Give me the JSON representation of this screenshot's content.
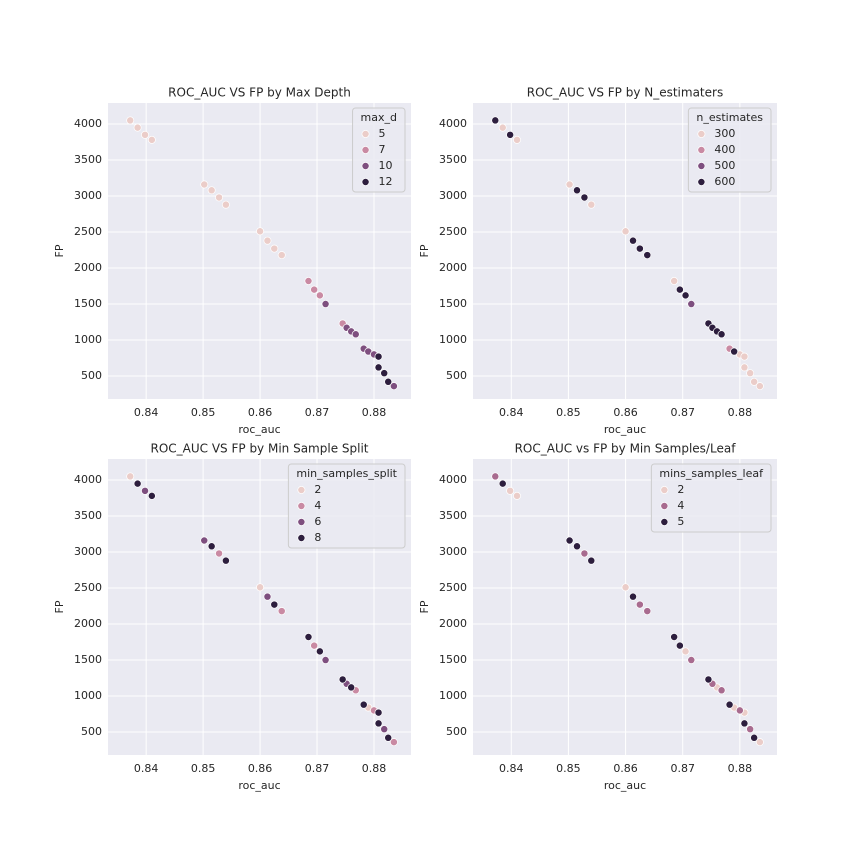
{
  "chart_data": [
    {
      "type": "scatter",
      "title": "ROC_AUC VS FP by Max Depth",
      "xlabel": "roc_auc",
      "ylabel": "FP",
      "legend_title": "max_d",
      "legend": "upper right",
      "grid": true,
      "xlim": [
        0.8333,
        0.8865
      ],
      "ylim": [
        181,
        4292
      ],
      "xticks": [
        0.84,
        0.85,
        0.86,
        0.87,
        0.88
      ],
      "yticks": [
        500,
        1000,
        1500,
        2000,
        2500,
        3000,
        3500,
        4000
      ],
      "series": [
        {
          "name": "5",
          "color": "#ebcdc9",
          "x": [
            0.8372,
            0.8385,
            0.8398,
            0.841,
            0.8502,
            0.8515,
            0.8528,
            0.854,
            0.86,
            0.8613,
            0.8625,
            0.8638
          ],
          "values": [
            4050,
            3950,
            3850,
            3780,
            3160,
            3080,
            2980,
            2880,
            2510,
            2380,
            2270,
            2180
          ]
        },
        {
          "name": "7",
          "color": "#c98aa3",
          "x": [
            0.8685,
            0.8695,
            0.8705,
            0.8745
          ],
          "values": [
            1820,
            1700,
            1620,
            1230
          ]
        },
        {
          "name": "10",
          "color": "#7e4f7f",
          "x": [
            0.8715,
            0.8752,
            0.876,
            0.8768,
            0.8782,
            0.879,
            0.88,
            0.8835
          ],
          "values": [
            1500,
            1170,
            1120,
            1080,
            880,
            840,
            800,
            360
          ]
        },
        {
          "name": "12",
          "color": "#2d1e3e",
          "x": [
            0.8808,
            0.8808,
            0.8818,
            0.8825
          ],
          "values": [
            770,
            620,
            540,
            420
          ]
        }
      ]
    },
    {
      "type": "scatter",
      "title": "ROC_AUC VS FP by N_estimaters",
      "xlabel": "roc_auc",
      "ylabel": "FP",
      "legend_title": "n_estimates",
      "legend": "upper right",
      "grid": true,
      "xlim": [
        0.8333,
        0.8865
      ],
      "ylim": [
        181,
        4292
      ],
      "xticks": [
        0.84,
        0.85,
        0.86,
        0.87,
        0.88
      ],
      "yticks": [
        500,
        1000,
        1500,
        2000,
        2500,
        3000,
        3500,
        4000
      ],
      "series": [
        {
          "name": "300",
          "color": "#ebcdc9",
          "x": [
            0.8385,
            0.841,
            0.8502,
            0.854,
            0.86,
            0.8685,
            0.88,
            0.8808,
            0.8808,
            0.8818,
            0.8825,
            0.8835
          ],
          "values": [
            3950,
            3780,
            3160,
            2880,
            2510,
            1820,
            800,
            770,
            620,
            540,
            420,
            360
          ]
        },
        {
          "name": "400",
          "color": "#c98aa3",
          "x": [
            0.8782
          ],
          "values": [
            880
          ]
        },
        {
          "name": "500",
          "color": "#7e4f7f",
          "x": [
            0.8715
          ],
          "values": [
            1500
          ]
        },
        {
          "name": "600",
          "color": "#2d1e3e",
          "x": [
            0.8372,
            0.8398,
            0.8515,
            0.8528,
            0.8613,
            0.8625,
            0.8638,
            0.8695,
            0.8705,
            0.8745,
            0.8752,
            0.876,
            0.8768,
            0.879
          ],
          "values": [
            4050,
            3850,
            3080,
            2980,
            2380,
            2270,
            2180,
            1700,
            1620,
            1230,
            1170,
            1120,
            1080,
            840
          ]
        }
      ]
    },
    {
      "type": "scatter",
      "title": "ROC_AUC VS FP by Min Sample Split",
      "xlabel": "roc_auc",
      "ylabel": "FP",
      "legend_title": "min_samples_split",
      "legend": "upper right",
      "grid": true,
      "xlim": [
        0.8333,
        0.8865
      ],
      "ylim": [
        181,
        4292
      ],
      "xticks": [
        0.84,
        0.85,
        0.86,
        0.87,
        0.88
      ],
      "yticks": [
        500,
        1000,
        1500,
        2000,
        2500,
        3000,
        3500,
        4000
      ],
      "series": [
        {
          "name": "2",
          "color": "#ebcdc9",
          "x": [
            0.8372,
            0.86,
            0.879
          ],
          "values": [
            4050,
            2510,
            840
          ]
        },
        {
          "name": "4",
          "color": "#c98aa3",
          "x": [
            0.8528,
            0.8638,
            0.8695,
            0.8768,
            0.88,
            0.8835
          ],
          "values": [
            2980,
            2180,
            1700,
            1080,
            800,
            360
          ]
        },
        {
          "name": "6",
          "color": "#7e4f7f",
          "x": [
            0.8398,
            0.8502,
            0.8613,
            0.8715,
            0.8752,
            0.8818
          ],
          "values": [
            3850,
            3160,
            2380,
            1500,
            1170,
            540
          ]
        },
        {
          "name": "8",
          "color": "#2d1e3e",
          "x": [
            0.8385,
            0.841,
            0.8515,
            0.854,
            0.8625,
            0.8685,
            0.8705,
            0.8745,
            0.876,
            0.8782,
            0.8808,
            0.8808,
            0.8825
          ],
          "values": [
            3950,
            3780,
            3080,
            2880,
            2270,
            1820,
            1620,
            1230,
            1120,
            880,
            770,
            620,
            420
          ]
        }
      ]
    },
    {
      "type": "scatter",
      "title": "ROC_AUC vs FP by Min Samples/Leaf",
      "xlabel": "roc_auc",
      "ylabel": "FP",
      "legend_title": "mins_samples_leaf",
      "legend": "upper right",
      "grid": true,
      "xlim": [
        0.8333,
        0.8865
      ],
      "ylim": [
        181,
        4292
      ],
      "xticks": [
        0.84,
        0.85,
        0.86,
        0.87,
        0.88
      ],
      "yticks": [
        500,
        1000,
        1500,
        2000,
        2500,
        3000,
        3500,
        4000
      ],
      "series": [
        {
          "name": "2",
          "color": "#ebcdc9",
          "x": [
            0.8398,
            0.841,
            0.86,
            0.8705,
            0.876,
            0.879,
            0.8808,
            0.8835
          ],
          "values": [
            3850,
            3780,
            2510,
            1620,
            1120,
            840,
            770,
            360
          ]
        },
        {
          "name": "4",
          "color": "#a86b8f",
          "x": [
            0.8372,
            0.8528,
            0.8625,
            0.8638,
            0.8715,
            0.8752,
            0.8768,
            0.88,
            0.8818
          ],
          "values": [
            4050,
            2980,
            2270,
            2180,
            1500,
            1170,
            1080,
            800,
            540
          ]
        },
        {
          "name": "5",
          "color": "#2d1e3e",
          "x": [
            0.8385,
            0.8502,
            0.8515,
            0.854,
            0.8613,
            0.8685,
            0.8695,
            0.8745,
            0.8782,
            0.8808,
            0.8825
          ],
          "values": [
            3950,
            3160,
            3080,
            2880,
            2380,
            1820,
            1700,
            1230,
            880,
            620,
            420
          ]
        }
      ]
    }
  ]
}
